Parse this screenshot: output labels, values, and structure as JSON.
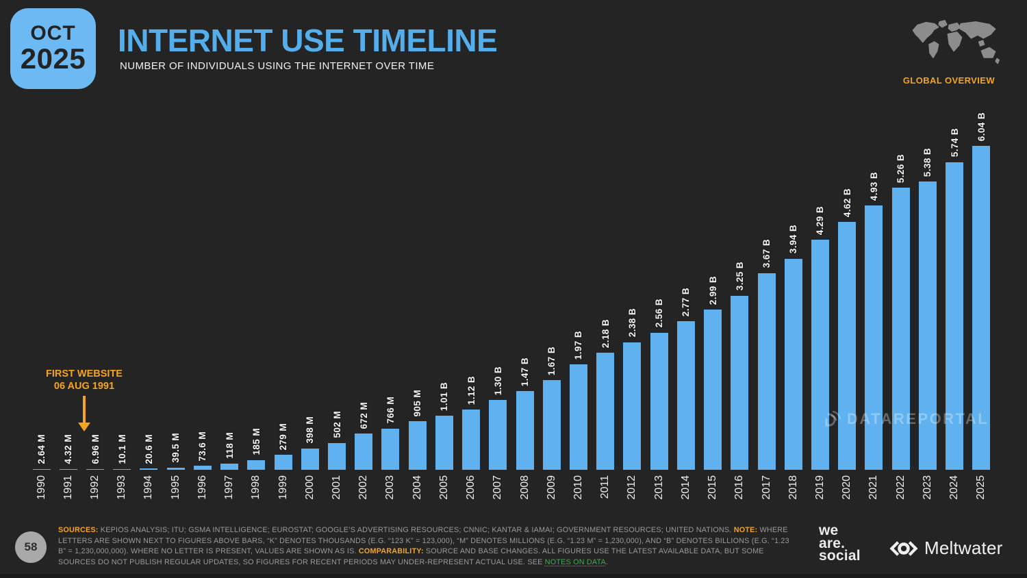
{
  "header": {
    "date_badge": {
      "month": "OCT",
      "year": "2025"
    },
    "title": "INTERNET USE TIMELINE",
    "subtitle": "NUMBER OF INDIVIDUALS USING THE INTERNET OVER TIME",
    "overview_label": "GLOBAL OVERVIEW"
  },
  "annotation": {
    "line1": "FIRST WEBSITE",
    "line2": "06 AUG 1991"
  },
  "watermark": "DATAREPORTAL",
  "chart_data": {
    "type": "bar",
    "title": "INTERNET USE TIMELINE",
    "subtitle": "NUMBER OF INDIVIDUALS USING THE INTERNET OVER TIME",
    "unit": "individuals (billions)",
    "ylim": [
      0,
      6.04
    ],
    "grid": false,
    "legend": "none",
    "bar_color": "#5FB2EF",
    "categories": [
      "1990",
      "1991",
      "1992",
      "1993",
      "1994",
      "1995",
      "1996",
      "1997",
      "1998",
      "1999",
      "2000",
      "2001",
      "2002",
      "2003",
      "2004",
      "2005",
      "2006",
      "2007",
      "2008",
      "2009",
      "2010",
      "2011",
      "2012",
      "2013",
      "2014",
      "2015",
      "2016",
      "2017",
      "2018",
      "2019",
      "2020",
      "2021",
      "2022",
      "2023",
      "2024",
      "2025"
    ],
    "values_billions": [
      0.00264,
      0.00432,
      0.00696,
      0.0101,
      0.0206,
      0.0395,
      0.0736,
      0.118,
      0.185,
      0.279,
      0.398,
      0.502,
      0.672,
      0.766,
      0.905,
      1.01,
      1.12,
      1.3,
      1.47,
      1.67,
      1.97,
      2.18,
      2.38,
      2.56,
      2.77,
      2.99,
      3.25,
      3.67,
      3.94,
      4.29,
      4.62,
      4.93,
      5.26,
      5.38,
      5.74,
      6.04
    ],
    "bar_labels": [
      "2.64 M",
      "4.32 M",
      "6.96 M",
      "10.1 M",
      "20.6 M",
      "39.5 M",
      "73.6 M",
      "118 M",
      "185 M",
      "279 M",
      "398 M",
      "502 M",
      "672 M",
      "766 M",
      "905 M",
      "1.01 B",
      "1.12 B",
      "1.30 B",
      "1.47 B",
      "1.67 B",
      "1.97 B",
      "2.18 B",
      "2.38 B",
      "2.56 B",
      "2.77 B",
      "2.99 B",
      "3.25 B",
      "3.67 B",
      "3.94 B",
      "4.29 B",
      "4.62 B",
      "4.93 B",
      "5.26 B",
      "5.38 B",
      "5.74 B",
      "6.04 B"
    ]
  },
  "footer": {
    "page_number": "58",
    "segments": [
      {
        "text": "SOURCES:",
        "style": "orange"
      },
      {
        "text": " KEPIOS ANALYSIS; ITU; GSMA INTELLIGENCE; EUROSTAT; GOOGLE’S ADVERTISING RESOURCES; CNNIC; KANTAR & IAMAI; GOVERNMENT RESOURCES; UNITED NATIONS. ",
        "style": "plain"
      },
      {
        "text": "NOTE:",
        "style": "orange"
      },
      {
        "text": " WHERE LETTERS ARE SHOWN NEXT TO FIGURES ABOVE BARS, “K” DENOTES THOUSANDS (E.G. “123 K” = 123,000), “M” DENOTES MILLIONS (E.G. “1.23 M” = 1,230,000), AND “B” DENOTES BILLIONS (E.G. “1.23 B” = 1,230,000,000). WHERE NO LETTER IS PRESENT, VALUES ARE SHOWN AS IS. ",
        "style": "plain"
      },
      {
        "text": "COMPARABILITY:",
        "style": "orange"
      },
      {
        "text": " SOURCE AND BASE CHANGES. ALL FIGURES USE THE LATEST AVAILABLE DATA, BUT SOME SOURCES DO NOT PUBLISH REGULAR UPDATES, SO FIGURES FOR RECENT PERIODS MAY UNDER-REPRESENT ACTUAL USE. SEE ",
        "style": "plain"
      },
      {
        "text": "NOTES ON DATA",
        "style": "green-link"
      },
      {
        "text": ".",
        "style": "plain"
      }
    ],
    "logos": {
      "we_are_social_lines": [
        "we",
        "are.",
        "social"
      ],
      "meltwater": "Meltwater"
    }
  },
  "colors": {
    "background": "#242425",
    "bar_blue": "#5FB2EF",
    "title_blue": "#55AEEC",
    "badge_blue": "#6CB9F3",
    "accent_orange": "#F5A422",
    "footer_gray": "#9A9A9A",
    "link_green": "#3CAE4E",
    "map_gray": "#8C8C8C"
  }
}
